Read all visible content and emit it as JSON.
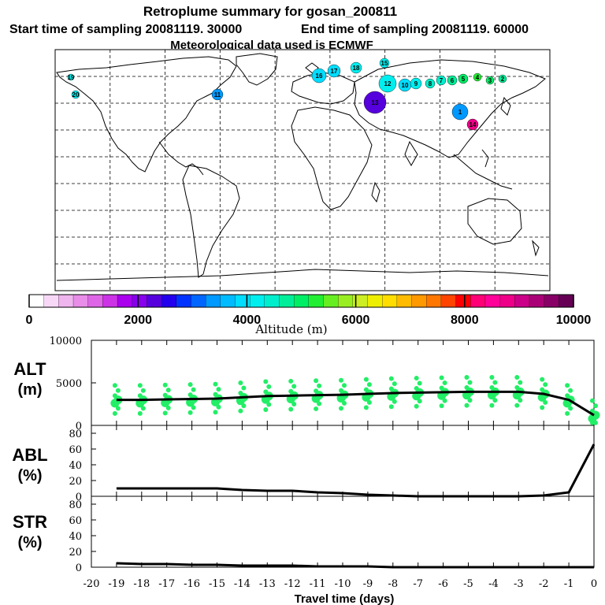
{
  "chart_data": [
    {
      "type": "map",
      "title": "Retroplume summary for gosan_200811",
      "subtitle_start": "Start time of sampling 20081119. 30000",
      "subtitle_end": "End time of sampling 20081119. 60000",
      "subtitle_met": "Meteorological data used is ECMWF",
      "colorbar": {
        "label": "Altitude (m)",
        "range": [
          0,
          10000
        ],
        "tick_labels": [
          "0",
          "2000",
          "4000",
          "6000",
          "8000",
          "10000"
        ],
        "tick_values": [
          0,
          2000,
          4000,
          6000,
          8000,
          10000
        ],
        "colors": [
          "#ffffff",
          "#f7d9f7",
          "#efb5ef",
          "#e88ee8",
          "#de66e6",
          "#cc33e6",
          "#aa00ee",
          "#8800ee",
          "#5500dd",
          "#2200ee",
          "#0033ff",
          "#0066ff",
          "#0099ff",
          "#00bbff",
          "#00ddff",
          "#00eeee",
          "#00eecc",
          "#00ee99",
          "#00ee66",
          "#22ee33",
          "#66ee22",
          "#99ee22",
          "#ccee22",
          "#eeee00",
          "#ffdd00",
          "#ffbb00",
          "#ff9900",
          "#ff7700",
          "#ff4400",
          "#ff0000",
          "#ff0077",
          "#ff0099",
          "#ee0088",
          "#cc0088",
          "#aa0077",
          "#880066",
          "#660055"
        ]
      },
      "plume_labels": [
        "16",
        "17",
        "18",
        "15",
        "13",
        "12",
        "10",
        "9",
        "8",
        "7",
        "6",
        "5",
        "4",
        "3",
        "2",
        "1",
        "14",
        "11",
        "20",
        "19"
      ]
    },
    {
      "type": "scatter-line",
      "ylabel_top": "ALT",
      "ylabel_bottom": "(m)",
      "ylim": [
        0,
        10000
      ],
      "yticks": [
        "10000",
        "5000",
        "0"
      ],
      "ytick_values": [
        10000,
        5000,
        0
      ],
      "median_x": [
        -19,
        -18,
        -17,
        -16,
        -15,
        -14,
        -13,
        -12,
        -11,
        -10,
        -9,
        -8,
        -7,
        -6,
        -5,
        -4,
        -3,
        -2,
        -1,
        0
      ],
      "median_y": [
        3000,
        3000,
        3050,
        3100,
        3150,
        3300,
        3450,
        3500,
        3550,
        3600,
        3700,
        3800,
        3850,
        3900,
        3950,
        3950,
        3950,
        3700,
        3000,
        1200
      ]
    },
    {
      "type": "line",
      "ylabel_top": "ABL",
      "ylabel_bottom": "(%)",
      "ylim": [
        0,
        90
      ],
      "yticks": [
        "80",
        "60",
        "40",
        "20",
        "0"
      ],
      "ytick_values": [
        80,
        60,
        40,
        20,
        0
      ],
      "x": [
        -19,
        -18,
        -17,
        -16,
        -15,
        -14,
        -13,
        -12,
        -11,
        -10,
        -9,
        -8,
        -7,
        -6,
        -5,
        -4,
        -3,
        -2,
        -1,
        0
      ],
      "y": [
        10,
        10,
        10,
        10,
        10,
        8,
        7,
        7,
        5,
        4,
        2,
        1,
        0,
        0,
        0,
        0,
        0,
        1,
        5,
        66
      ]
    },
    {
      "type": "line",
      "ylabel_top": "STR",
      "ylabel_bottom": "(%)",
      "ylim": [
        0,
        90
      ],
      "yticks": [
        "80",
        "60",
        "40",
        "20",
        "0"
      ],
      "ytick_values": [
        80,
        60,
        40,
        20,
        0
      ],
      "x": [
        -19,
        -18,
        -17,
        -16,
        -15,
        -14,
        -13,
        -12,
        -11,
        -10,
        -9,
        -8,
        -7,
        -6,
        -5,
        -4,
        -3,
        -2,
        -1,
        0
      ],
      "y": [
        5,
        4,
        4,
        3,
        3,
        2,
        2,
        2,
        1,
        1,
        1,
        0,
        0,
        0,
        0,
        0,
        0,
        0,
        0,
        0
      ],
      "xlabel": "Travel time (days)",
      "xlim": [
        -20,
        0
      ],
      "xticks": [
        "-20",
        "-19",
        "-18",
        "-17",
        "-16",
        "-15",
        "-14",
        "-13",
        "-12",
        "-11",
        "-10",
        "-9",
        "-8",
        "-7",
        "-6",
        "-5",
        "-4",
        "-3",
        "-2",
        "-1",
        "0"
      ],
      "xtick_values": [
        -20,
        -19,
        -18,
        -17,
        -16,
        -15,
        -14,
        -13,
        -12,
        -11,
        -10,
        -9,
        -8,
        -7,
        -6,
        -5,
        -4,
        -3,
        -2,
        -1,
        0
      ]
    }
  ]
}
